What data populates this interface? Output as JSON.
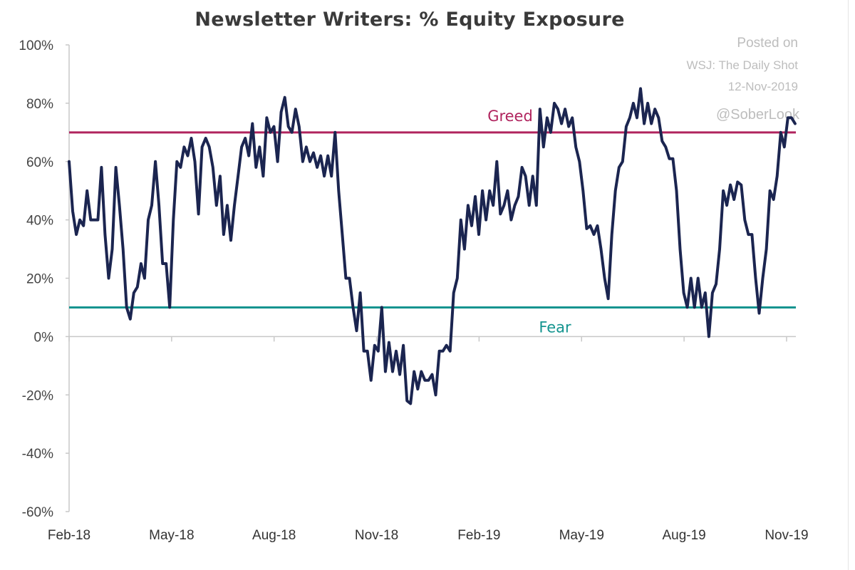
{
  "chart_data": {
    "type": "line",
    "title": "Newsletter Writers: % Equity Exposure",
    "xlabel": "",
    "ylabel": "",
    "ylim": [
      -60,
      100
    ],
    "yticks": [
      "100%",
      "80%",
      "60%",
      "40%",
      "20%",
      "0%",
      "-20%",
      "-40%",
      "-60%"
    ],
    "ytick_values": [
      100,
      80,
      60,
      40,
      20,
      0,
      -20,
      -40,
      -60
    ],
    "xticks": [
      "Feb-18",
      "May-18",
      "Aug-18",
      "Nov-18",
      "Feb-19",
      "May-19",
      "Aug-19",
      "Nov-19"
    ],
    "xtick_months": [
      0,
      3,
      6,
      9,
      12,
      15,
      18,
      21
    ],
    "x_range_months_since_feb18": [
      0,
      21.25
    ],
    "grid": false,
    "series": [
      {
        "name": "% Equity Exposure",
        "color": "#1b2550",
        "values": [
          60,
          43,
          35,
          40,
          38,
          50,
          40,
          40,
          40,
          58,
          35,
          20,
          30,
          58,
          45,
          30,
          10,
          6,
          15,
          17,
          25,
          20,
          40,
          45,
          60,
          45,
          25,
          25,
          10,
          40,
          60,
          58,
          65,
          62,
          68,
          60,
          42,
          65,
          68,
          65,
          58,
          45,
          55,
          35,
          45,
          33,
          45,
          55,
          65,
          68,
          62,
          73,
          58,
          65,
          55,
          75,
          70,
          72,
          60,
          77,
          82,
          72,
          70,
          78,
          72,
          60,
          65,
          60,
          63,
          58,
          62,
          55,
          62,
          55,
          70,
          50,
          35,
          20,
          20,
          10,
          2,
          15,
          -5,
          -5,
          -15,
          -3,
          -5,
          10,
          -12,
          -2,
          -12,
          -5,
          -13,
          -3,
          -22,
          -23,
          -12,
          -18,
          -12,
          -15,
          -15,
          -13,
          -20,
          -5,
          -5,
          -3,
          -5,
          15,
          20,
          40,
          30,
          45,
          38,
          48,
          35,
          50,
          40,
          50,
          45,
          60,
          42,
          45,
          50,
          40,
          45,
          48,
          58,
          55,
          45,
          55,
          45,
          78,
          65,
          75,
          70,
          80,
          78,
          73,
          78,
          72,
          75,
          65,
          60,
          50,
          37,
          38,
          35,
          38,
          30,
          20,
          13,
          35,
          50,
          58,
          60,
          72,
          75,
          80,
          75,
          85,
          73,
          80,
          73,
          78,
          75,
          67,
          65,
          61,
          61,
          50,
          30,
          15,
          10,
          20,
          10,
          20,
          10,
          15,
          0,
          15,
          18,
          30,
          50,
          45,
          52,
          47,
          53,
          52,
          40,
          35,
          35,
          20,
          8,
          20,
          30,
          50,
          47,
          55,
          70,
          65,
          75,
          75,
          73
        ]
      }
    ],
    "reference_lines": [
      {
        "label": "Greed",
        "value": 70,
        "color": "#b0245e"
      },
      {
        "label": "Fear",
        "value": 10,
        "color": "#14948f"
      }
    ],
    "annotations": [
      "Posted on",
      "WSJ: The Daily Shot",
      "12-Nov-2019",
      "@SoberLook"
    ]
  }
}
